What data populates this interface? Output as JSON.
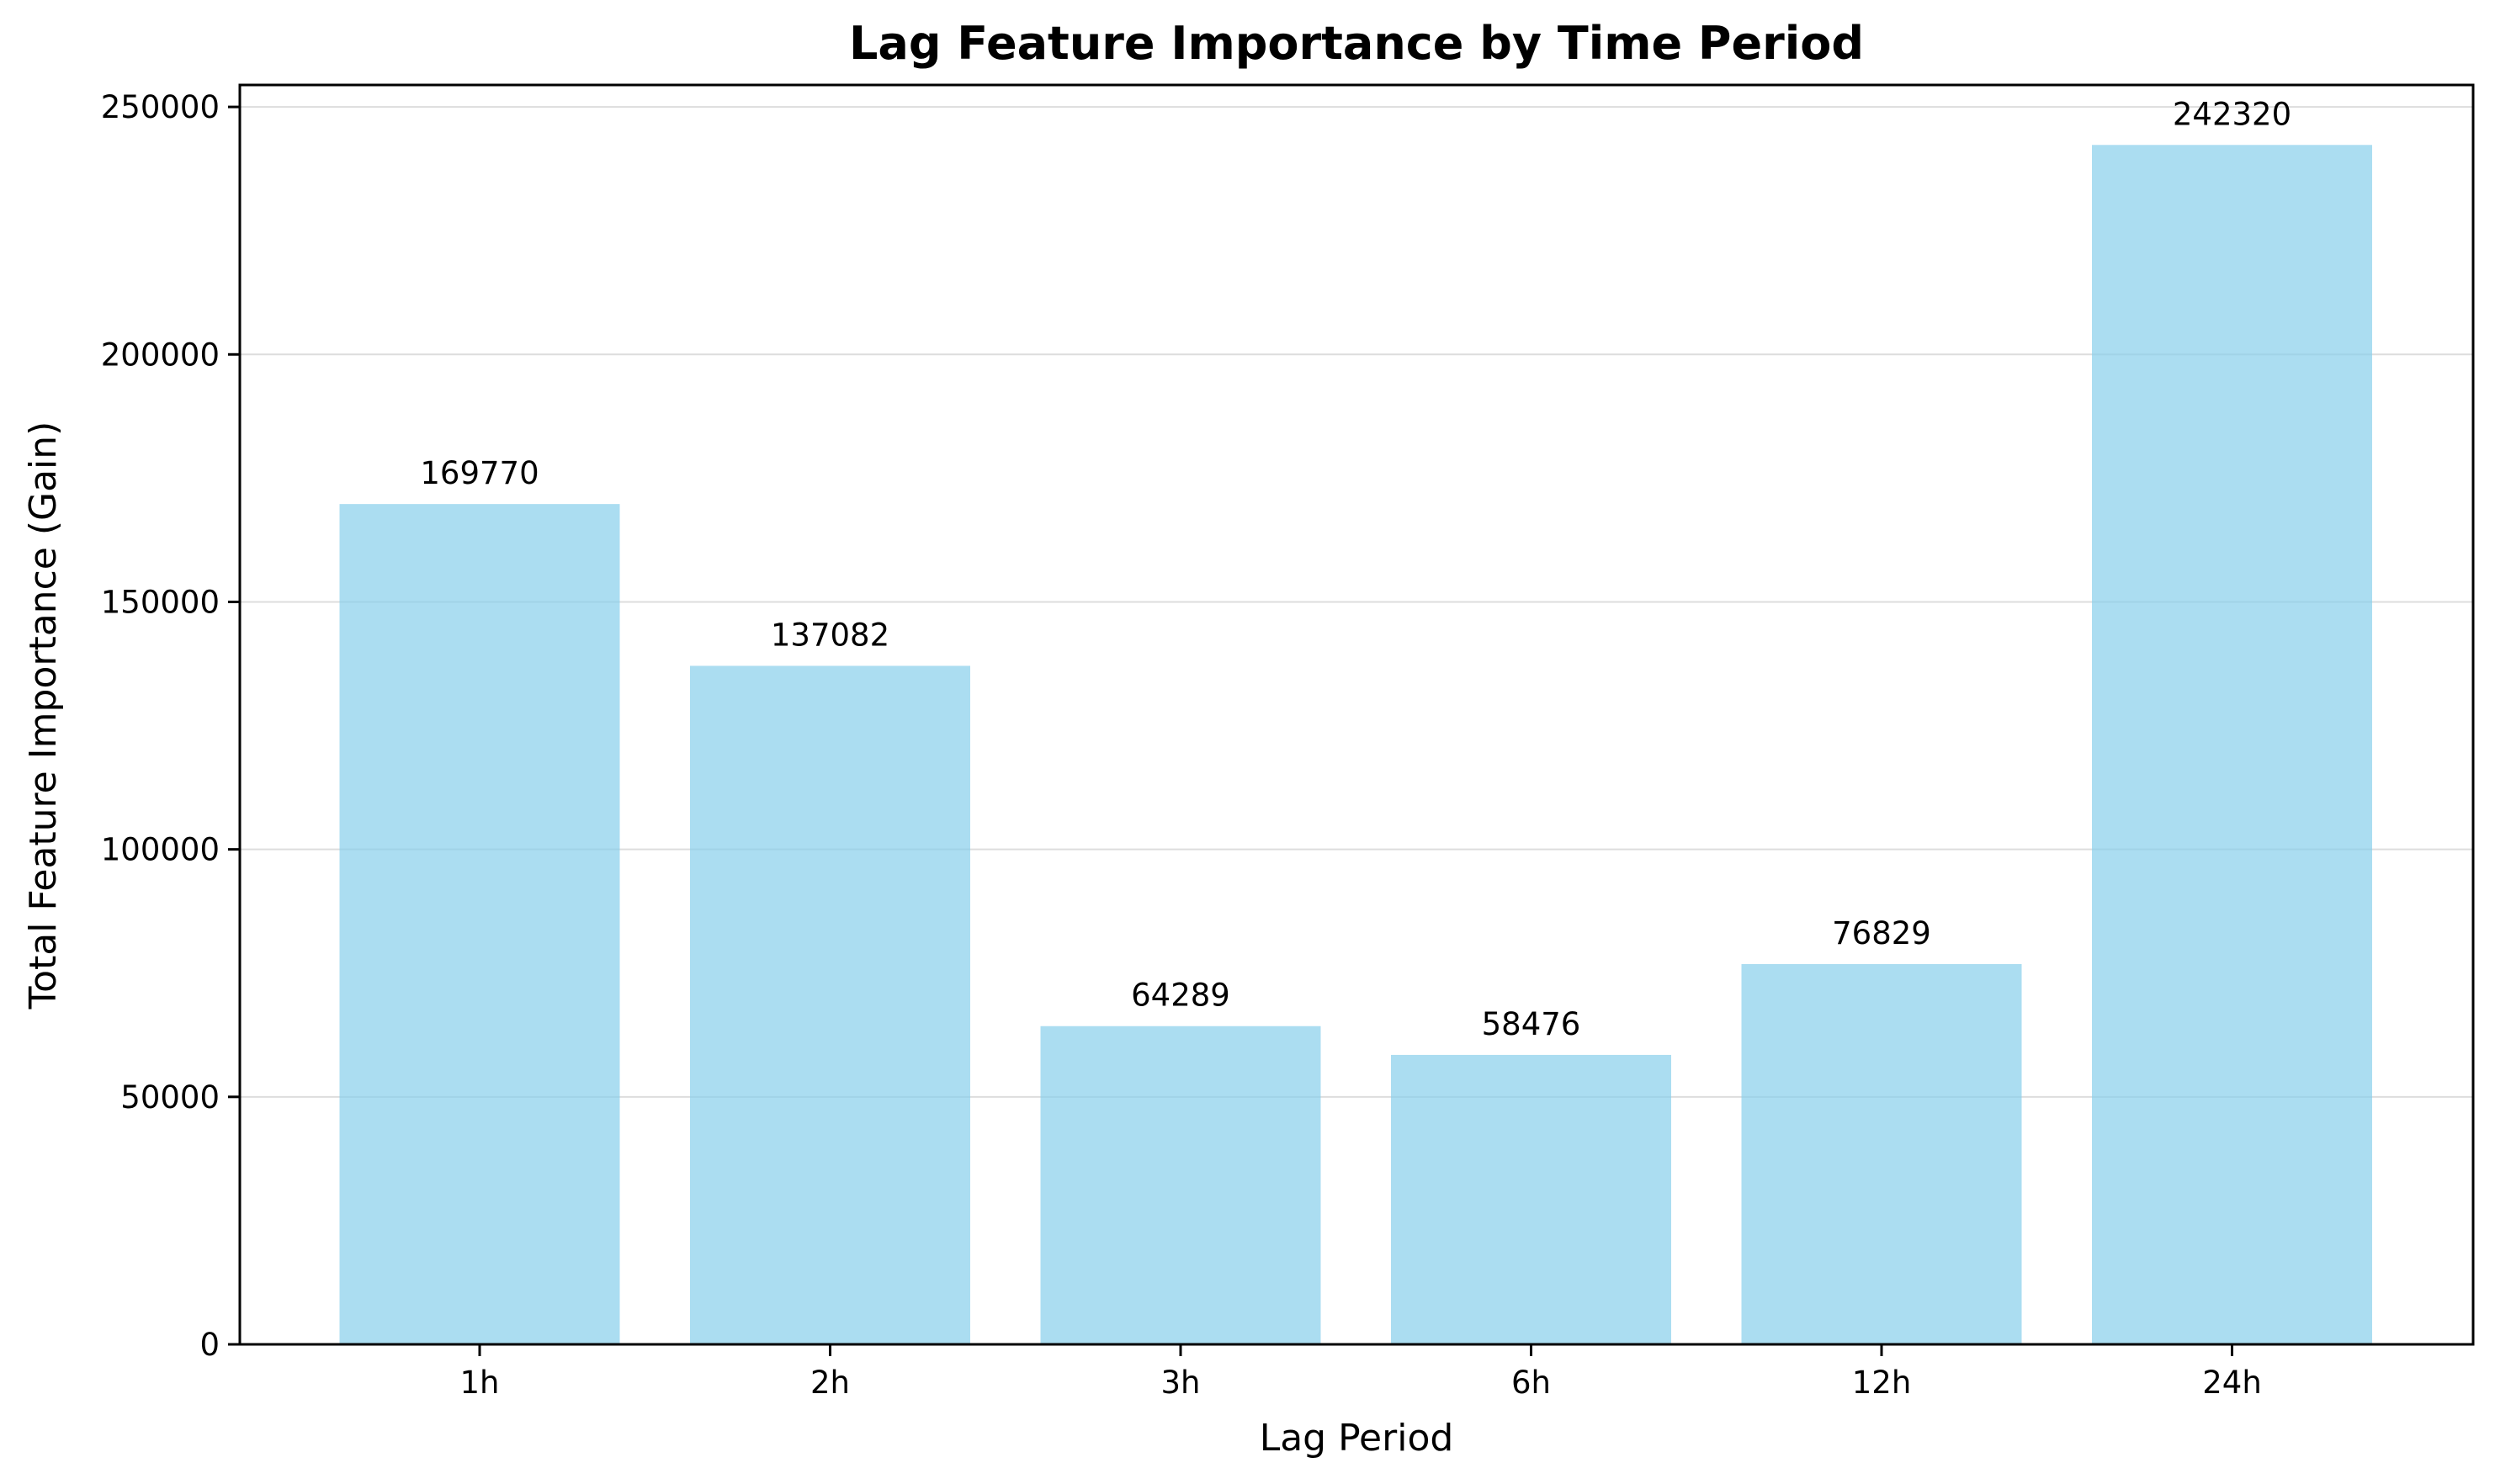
{
  "chart_data": {
    "type": "bar",
    "title": "Lag Feature Importance by Time Period",
    "xlabel": "Lag Period",
    "ylabel": "Total Feature Importance (Gain)",
    "categories": [
      "1h",
      "2h",
      "3h",
      "6h",
      "12h",
      "24h"
    ],
    "values": [
      169770,
      137082,
      64289,
      58476,
      76829,
      242320
    ],
    "data_labels": [
      "169770",
      "137082",
      "64289",
      "58476",
      "76829",
      "242320"
    ],
    "ylim": [
      0,
      254436
    ],
    "yticks": [
      0,
      50000,
      100000,
      150000,
      200000,
      250000
    ],
    "ytick_labels": [
      "0",
      "50000",
      "100000",
      "150000",
      "200000",
      "250000"
    ],
    "grid": "y",
    "bar_color": "#87CEEB",
    "bar_opacity": 0.7
  }
}
